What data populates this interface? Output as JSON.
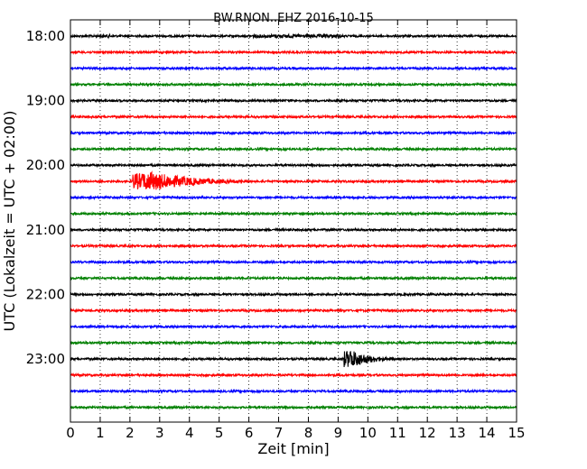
{
  "chart_data": {
    "type": "line",
    "title": "BW.RNON..EHZ 2016-10-15",
    "xlabel": "Zeit  [min]",
    "ylabel": "UTC (Lokalzeit = UTC + 02:00)",
    "xlim": [
      0,
      15
    ],
    "x_ticks": [
      "0",
      "1",
      "2",
      "3",
      "4",
      "5",
      "6",
      "7",
      "8",
      "9",
      "10",
      "11",
      "12",
      "13",
      "14",
      "15"
    ],
    "y_tick_labels": [
      "18:00",
      "19:00",
      "20:00",
      "21:00",
      "22:00",
      "23:00"
    ],
    "grid": true,
    "trace_colors": [
      "#000000",
      "#ff0000",
      "#0000ff",
      "#008000"
    ],
    "trace_count": 24,
    "trace_interval_min": 15,
    "start_time": "18:00",
    "events": [
      {
        "trace_start": "20:15",
        "onset_min": 2.1,
        "peak_min": 2.5,
        "decay_end_min": 7.5
      },
      {
        "trace_start": "23:00",
        "onset_min": 9.2,
        "peak_min": 9.35,
        "decay_end_min": 11.5
      }
    ]
  }
}
